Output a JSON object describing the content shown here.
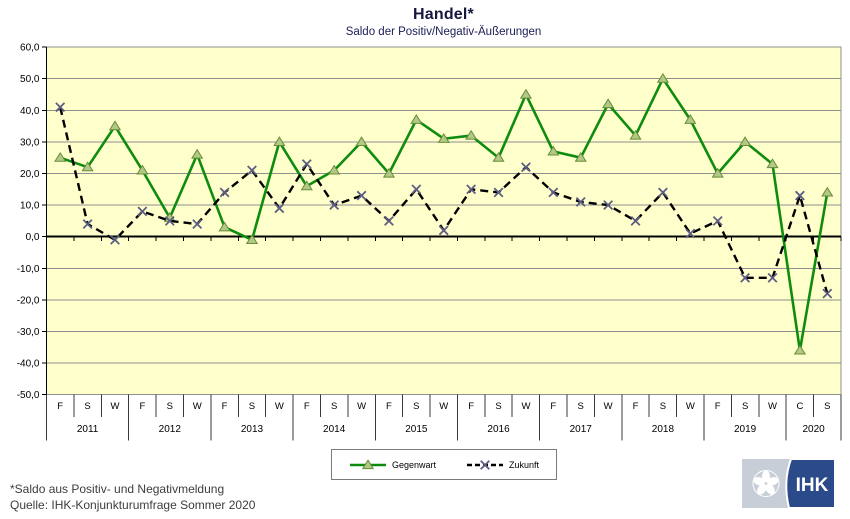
{
  "header": {
    "title": "Handel*",
    "subtitle": "Saldo der Positiv/Negativ-Äußerungen"
  },
  "chart_data": {
    "type": "line",
    "title": "Handel*",
    "subtitle": "Saldo der Positiv/Negativ-Äußerungen",
    "ylim": [
      -50,
      60
    ],
    "ytick_step": 10,
    "ytick_format": "de-comma-one-decimal",
    "grid": true,
    "plot_bg": "#ffffcc",
    "grid_color": "#8f8f8f",
    "zero_line_color": "#000000",
    "separator_color": "#3a3a3a",
    "legend_position": "bottom-center",
    "year_groups": [
      {
        "year": "2011",
        "seasons": [
          "F",
          "S",
          "W"
        ]
      },
      {
        "year": "2012",
        "seasons": [
          "F",
          "S",
          "W"
        ]
      },
      {
        "year": "2013",
        "seasons": [
          "F",
          "S",
          "W"
        ]
      },
      {
        "year": "2014",
        "seasons": [
          "F",
          "S",
          "W"
        ]
      },
      {
        "year": "2015",
        "seasons": [
          "F",
          "S",
          "W"
        ]
      },
      {
        "year": "2016",
        "seasons": [
          "F",
          "S",
          "W"
        ]
      },
      {
        "year": "2017",
        "seasons": [
          "F",
          "S",
          "W"
        ]
      },
      {
        "year": "2018",
        "seasons": [
          "F",
          "S",
          "W"
        ]
      },
      {
        "year": "2019",
        "seasons": [
          "F",
          "S",
          "W"
        ]
      },
      {
        "year": "2020",
        "seasons": [
          "C",
          "S"
        ]
      }
    ],
    "series": [
      {
        "name": "Gegenwart",
        "line": "solid",
        "color": "#0e8c0e",
        "marker": "triangle",
        "marker_fill": "#b2c985",
        "marker_stroke": "#678c3a",
        "values": [
          25,
          22,
          35,
          21,
          6,
          26,
          3,
          -1,
          30,
          16,
          21,
          30,
          20,
          37,
          31,
          32,
          25,
          45,
          27,
          25,
          42,
          32,
          50,
          37,
          20,
          30,
          23,
          -36,
          14
        ]
      },
      {
        "name": "Zukunft",
        "line": "dashed",
        "color": "#000000",
        "marker": "x",
        "marker_fill": "#5e5e84",
        "marker_stroke": "#5e5e84",
        "values": [
          41,
          4,
          -1,
          8,
          5,
          4,
          14,
          21,
          9,
          23,
          10,
          13,
          5,
          15,
          2,
          15,
          14,
          22,
          14,
          11,
          10,
          5,
          14,
          1,
          5,
          -13,
          -13,
          13,
          -18
        ]
      }
    ]
  },
  "footnotes": {
    "line1": "*Saldo aus Positiv- und Negativmeldung",
    "line2": "Quelle: IHK-Konjunkturumfrage Sommer 2020"
  },
  "logo": {
    "text": "IHK"
  }
}
